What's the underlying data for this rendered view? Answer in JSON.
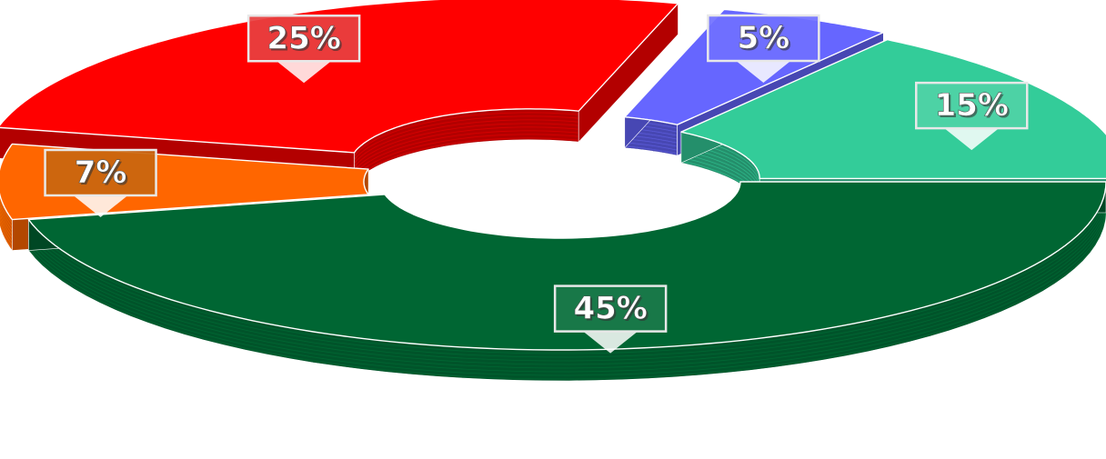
{
  "chart_data": {
    "type": "pie",
    "variant": "3d-exploded-donut",
    "title": "",
    "legend": "none",
    "slices": [
      {
        "label": "45%",
        "value": 45,
        "color": "#006633"
      },
      {
        "label": "7%",
        "value": 7,
        "color": "#FF6600"
      },
      {
        "label": "25%",
        "value": 25,
        "color": "#FF0000"
      },
      {
        "label": "5%",
        "value": 5,
        "color": "#6666FF"
      },
      {
        "label": "15%",
        "value": 15,
        "color": "#33CC99"
      }
    ],
    "label_box_colors": {
      "45%": "#1a7a4a",
      "7%": "#c9660f",
      "25%": "#e84040",
      "5%": "#7070ff",
      "15%": "#4fd3a6"
    }
  }
}
